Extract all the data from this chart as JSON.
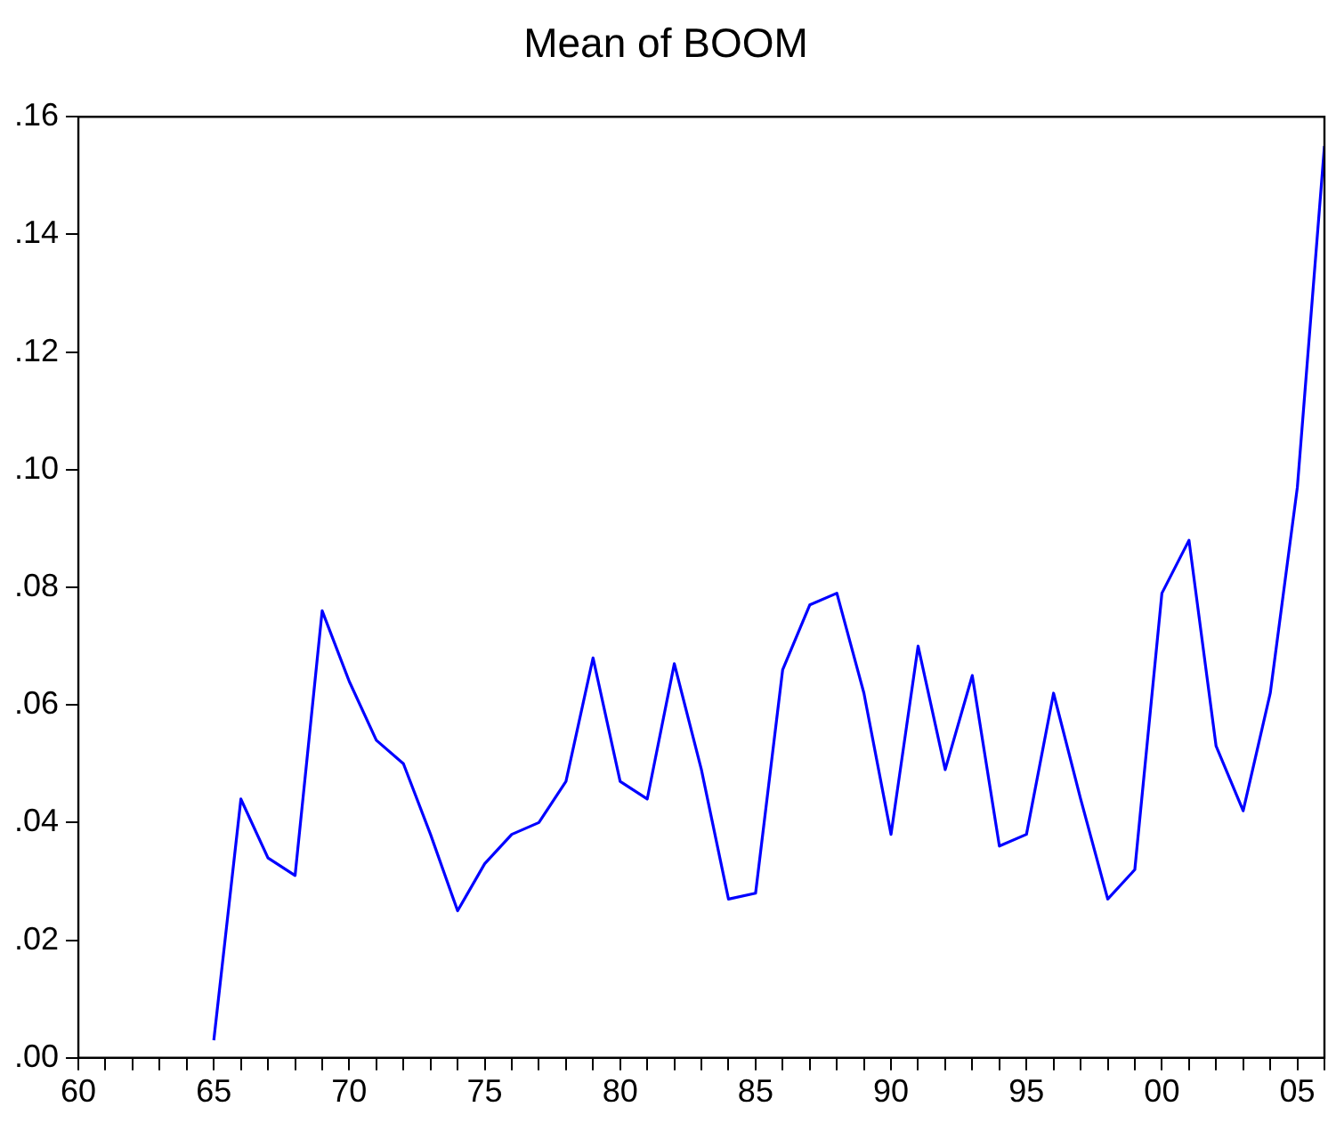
{
  "chart_data": {
    "type": "line",
    "title": "Mean of BOOM",
    "x": [
      1965,
      1966,
      1967,
      1968,
      1969,
      1970,
      1971,
      1972,
      1973,
      1974,
      1975,
      1976,
      1977,
      1978,
      1979,
      1980,
      1981,
      1982,
      1983,
      1984,
      1985,
      1986,
      1987,
      1988,
      1989,
      1990,
      1991,
      1992,
      1993,
      1994,
      1995,
      1996,
      1997,
      1998,
      1999,
      2000,
      2001,
      2002,
      2003,
      2004,
      2005,
      2006
    ],
    "series": [
      {
        "color": "#0000ff",
        "values": [
          0.003,
          0.044,
          0.034,
          0.031,
          0.076,
          0.064,
          0.054,
          0.05,
          0.038,
          0.025,
          0.033,
          0.038,
          0.04,
          0.047,
          0.068,
          0.047,
          0.044,
          0.067,
          0.049,
          0.027,
          0.028,
          0.066,
          0.077,
          0.079,
          0.062,
          0.038,
          0.07,
          0.049,
          0.065,
          0.036,
          0.038,
          0.062,
          0.044,
          0.027,
          0.032,
          0.079,
          0.088,
          0.053,
          0.042,
          0.062,
          0.097,
          0.155
        ]
      }
    ],
    "xlim": [
      1960,
      2006
    ],
    "xticks": [
      {
        "value": 1960,
        "label": "60"
      },
      {
        "value": 1961,
        "label": null
      },
      {
        "value": 1962,
        "label": null
      },
      {
        "value": 1963,
        "label": null
      },
      {
        "value": 1964,
        "label": null
      },
      {
        "value": 1965,
        "label": "65"
      },
      {
        "value": 1966,
        "label": null
      },
      {
        "value": 1967,
        "label": null
      },
      {
        "value": 1968,
        "label": null
      },
      {
        "value": 1969,
        "label": null
      },
      {
        "value": 1970,
        "label": "70"
      },
      {
        "value": 1971,
        "label": null
      },
      {
        "value": 1972,
        "label": null
      },
      {
        "value": 1973,
        "label": null
      },
      {
        "value": 1974,
        "label": null
      },
      {
        "value": 1975,
        "label": "75"
      },
      {
        "value": 1976,
        "label": null
      },
      {
        "value": 1977,
        "label": null
      },
      {
        "value": 1978,
        "label": null
      },
      {
        "value": 1979,
        "label": null
      },
      {
        "value": 1980,
        "label": "80"
      },
      {
        "value": 1981,
        "label": null
      },
      {
        "value": 1982,
        "label": null
      },
      {
        "value": 1983,
        "label": null
      },
      {
        "value": 1984,
        "label": null
      },
      {
        "value": 1985,
        "label": "85"
      },
      {
        "value": 1986,
        "label": null
      },
      {
        "value": 1987,
        "label": null
      },
      {
        "value": 1988,
        "label": null
      },
      {
        "value": 1989,
        "label": null
      },
      {
        "value": 1990,
        "label": "90"
      },
      {
        "value": 1991,
        "label": null
      },
      {
        "value": 1992,
        "label": null
      },
      {
        "value": 1993,
        "label": null
      },
      {
        "value": 1994,
        "label": null
      },
      {
        "value": 1995,
        "label": "95"
      },
      {
        "value": 1996,
        "label": null
      },
      {
        "value": 1997,
        "label": null
      },
      {
        "value": 1998,
        "label": null
      },
      {
        "value": 1999,
        "label": null
      },
      {
        "value": 2000,
        "label": "00"
      },
      {
        "value": 2001,
        "label": null
      },
      {
        "value": 2002,
        "label": null
      },
      {
        "value": 2003,
        "label": null
      },
      {
        "value": 2004,
        "label": null
      },
      {
        "value": 2005,
        "label": "05"
      },
      {
        "value": 2006,
        "label": null
      }
    ],
    "ylim": [
      0,
      0.16
    ],
    "yticks": [
      {
        "value": 0,
        "label": ".00"
      },
      {
        "value": 0.02,
        "label": ".02"
      },
      {
        "value": 0.04,
        "label": ".04"
      },
      {
        "value": 0.06,
        "label": ".06"
      },
      {
        "value": 0.08,
        "label": ".08"
      },
      {
        "value": 0.1,
        "label": ".10"
      },
      {
        "value": 0.12,
        "label": ".12"
      },
      {
        "value": 0.14,
        "label": ".14"
      },
      {
        "value": 0.16,
        "label": ".16"
      }
    ],
    "grid": false,
    "legend": false,
    "marker": "none",
    "line_style": "solid"
  }
}
